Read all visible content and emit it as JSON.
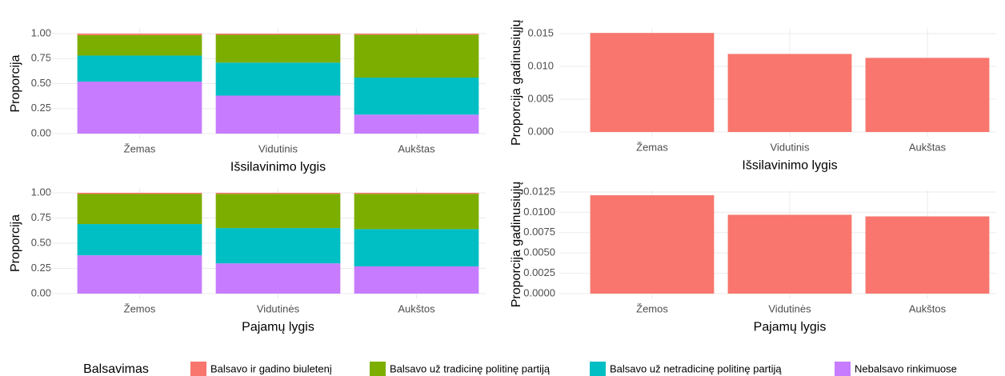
{
  "chart_data": [
    {
      "type": "bar",
      "stacked": true,
      "xlabel": "Išsilavinimo lygis",
      "ylabel": "Proporcija",
      "legend_title": "Balsavimas",
      "categories": [
        "Žemas",
        "Vidutinis",
        "Aukštas"
      ],
      "series": [
        {
          "name": "Balsavo ir gadino biuletenį",
          "color": "#F8766D",
          "values": [
            0.015,
            0.012,
            0.011
          ]
        },
        {
          "name": "Balsavo už tradicinę politinę partiją",
          "color": "#7CAE00",
          "values": [
            0.205,
            0.278,
            0.429
          ]
        },
        {
          "name": "Balsavo už netradicinę politinę partiją",
          "color": "#00BFC4",
          "values": [
            0.26,
            0.33,
            0.37
          ]
        },
        {
          "name": "Nebalsavo rinkimuose",
          "color": "#C77CFF",
          "values": [
            0.52,
            0.38,
            0.19
          ]
        }
      ],
      "ylim": [
        -0.05,
        1.05
      ],
      "yticks": [
        {
          "value": 0,
          "label": "0.00"
        },
        {
          "value": 0.25,
          "label": "0.25"
        },
        {
          "value": 0.5,
          "label": "0.50"
        },
        {
          "value": 0.75,
          "label": "0.75"
        },
        {
          "value": 1,
          "label": "1.00"
        }
      ],
      "grid": true
    },
    {
      "type": "bar",
      "xlabel": "Išsilavinimo lygis",
      "ylabel": "Proporcija gadinusiųjų",
      "categories": [
        "Žemas",
        "Vidutinis",
        "Aukštas"
      ],
      "values": [
        0.0151,
        0.0119,
        0.0113
      ],
      "color": "#F8766D",
      "ylim": [
        -0.00075,
        0.0158
      ],
      "yticks": [
        {
          "value": 0,
          "label": "0.000"
        },
        {
          "value": 0.005,
          "label": "0.005"
        },
        {
          "value": 0.01,
          "label": "0.010"
        },
        {
          "value": 0.015,
          "label": "0.015"
        }
      ],
      "grid": true
    },
    {
      "type": "bar",
      "stacked": true,
      "xlabel": "Pajamų lygis",
      "ylabel": "Proporcija",
      "categories": [
        "Žemos",
        "Vidutinės",
        "Aukštos"
      ],
      "series": [
        {
          "name": "Balsavo ir gadino biuletenį",
          "color": "#F8766D",
          "values": [
            0.012,
            0.01,
            0.01
          ]
        },
        {
          "name": "Balsavo už tradicinę politinę partiją",
          "color": "#7CAE00",
          "values": [
            0.298,
            0.34,
            0.35
          ]
        },
        {
          "name": "Balsavo už netradicinę politinę partiją",
          "color": "#00BFC4",
          "values": [
            0.31,
            0.35,
            0.37
          ]
        },
        {
          "name": "Nebalsavo rinkimuose",
          "color": "#C77CFF",
          "values": [
            0.38,
            0.3,
            0.27
          ]
        }
      ],
      "ylim": [
        -0.05,
        1.05
      ],
      "yticks": [
        {
          "value": 0,
          "label": "0.00"
        },
        {
          "value": 0.25,
          "label": "0.25"
        },
        {
          "value": 0.5,
          "label": "0.50"
        },
        {
          "value": 0.75,
          "label": "0.75"
        },
        {
          "value": 1,
          "label": "1.00"
        }
      ],
      "grid": true
    },
    {
      "type": "bar",
      "xlabel": "Pajamų lygis",
      "ylabel": "Proporcija gadinusiųjų",
      "categories": [
        "Žemos",
        "Vidutinės",
        "Aukštos"
      ],
      "values": [
        0.0121,
        0.0097,
        0.0095
      ],
      "color": "#F8766D",
      "ylim": [
        -0.0006,
        0.0127
      ],
      "yticks": [
        {
          "value": 0,
          "label": "0.0000"
        },
        {
          "value": 0.0025,
          "label": "0.0025"
        },
        {
          "value": 0.005,
          "label": "0.0050"
        },
        {
          "value": 0.0075,
          "label": "0.0075"
        },
        {
          "value": 0.01,
          "label": "0.0100"
        },
        0.0125
      ],
      "grid": true
    }
  ]
}
